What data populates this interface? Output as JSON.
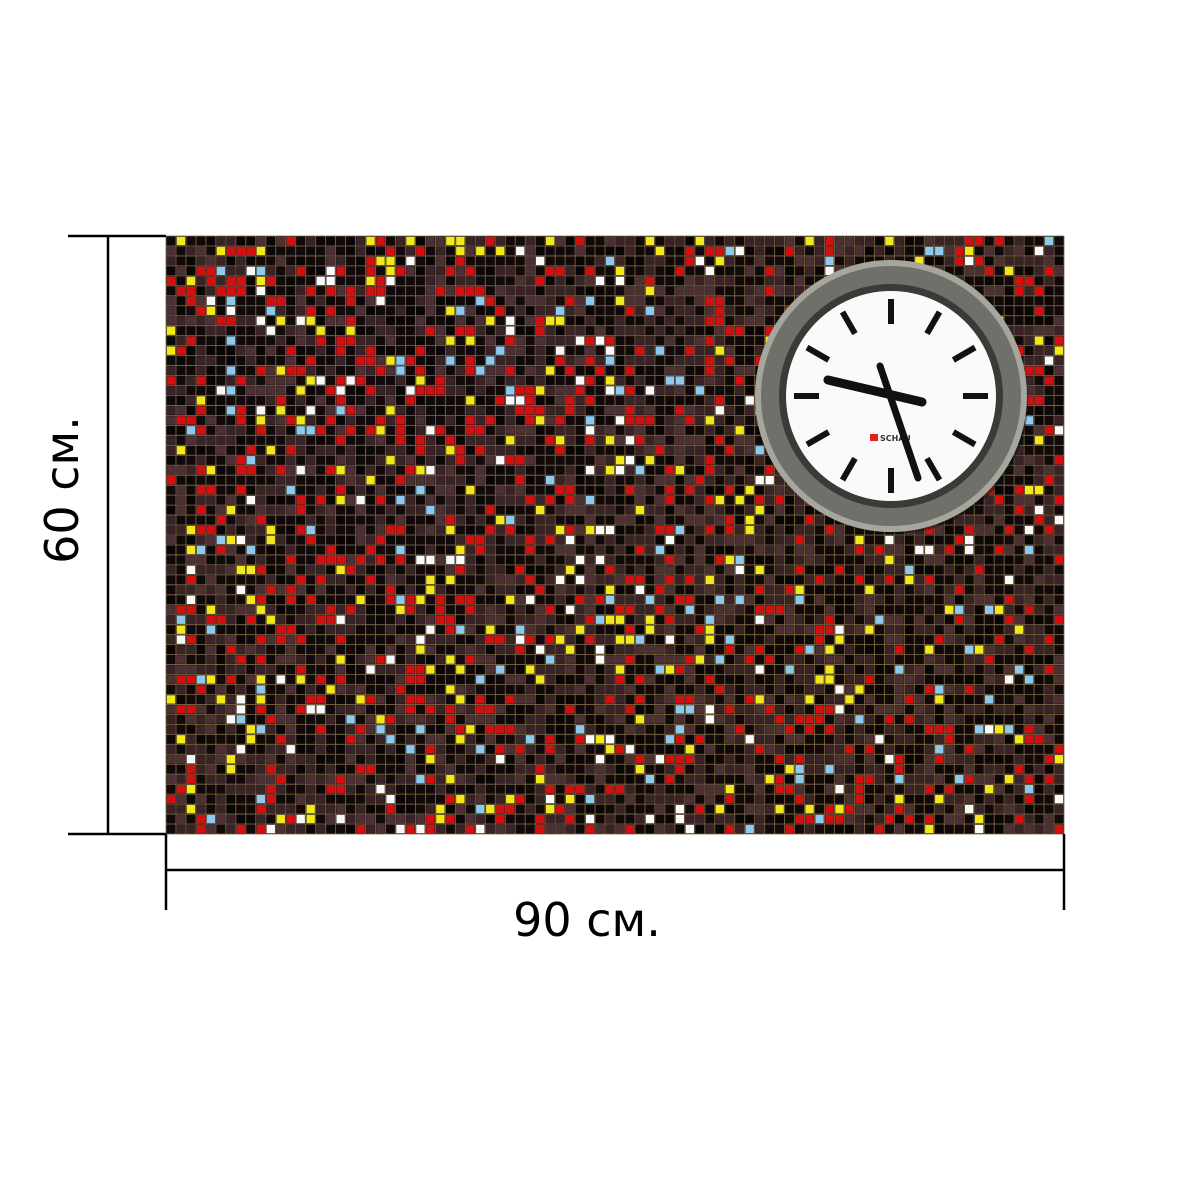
{
  "height_label": "60 см.",
  "width_label": "90 см.",
  "clock_brand": "SCHAU"
}
